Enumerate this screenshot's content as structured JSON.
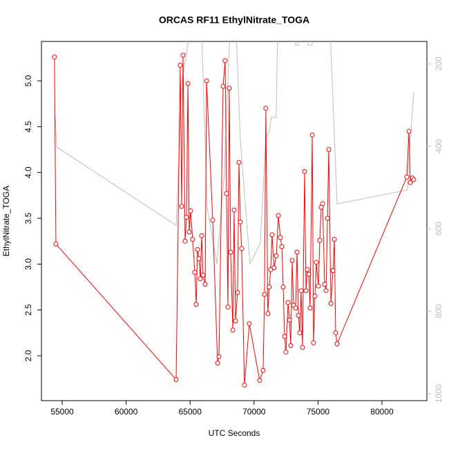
{
  "chart_data": {
    "type": "line",
    "title": "ORCAS RF11 EthylNitrate_TOGA",
    "xlabel": "UTC Seconds",
    "ylabel": "EthylNitrate_TOGA",
    "xlim": [
      53380,
      83510
    ],
    "ylim": [
      1.51,
      5.43
    ],
    "y2lim": [
      1017,
      146
    ],
    "xticks": [
      55000,
      60000,
      65000,
      70000,
      75000,
      80000
    ],
    "yticks": [
      {
        "value": 2,
        "label": "2.0"
      },
      {
        "value": 2.5,
        "label": "2.5"
      },
      {
        "value": 3,
        "label": "3.0"
      },
      {
        "value": 3.5,
        "label": "3.5"
      },
      {
        "value": 4,
        "label": "4.0"
      },
      {
        "value": 4.5,
        "label": "4.5"
      },
      {
        "value": 5,
        "label": "5.0"
      }
    ],
    "y2ticks": [
      200,
      400,
      600,
      800,
      1000
    ],
    "series": [
      {
        "axis": "y2",
        "color": "#bebebe",
        "markers": false,
        "x": [
          54460,
          54570,
          63910,
          64340,
          64990,
          65900,
          66330,
          67090,
          67680,
          68110,
          68600,
          68920,
          69680,
          70490,
          70920,
          71190,
          71350,
          71730,
          71840,
          73240,
          73250,
          73460,
          73470,
          74220,
          74230,
          74540,
          74600,
          75950,
          76490,
          82000,
          82050,
          82480
        ],
        "values": [
          330,
          402,
          592,
          247,
          120,
          120,
          548,
          685,
          464,
          120,
          120,
          381,
          685,
          635,
          381,
          364,
          330,
          330,
          120,
          120,
          155,
          155,
          120,
          120,
          155,
          155,
          120,
          120,
          540,
          506,
          464,
          269
        ]
      },
      {
        "axis": "y",
        "color": "#ff0000",
        "markers": true,
        "x": [
          54400,
          54510,
          63910,
          64230,
          64340,
          64450,
          64610,
          64720,
          64830,
          64930,
          65040,
          65200,
          65370,
          65480,
          65580,
          65690,
          65800,
          65910,
          66010,
          66180,
          66290,
          66770,
          67150,
          67260,
          67580,
          67740,
          67850,
          67960,
          68060,
          68170,
          68340,
          68440,
          68550,
          68710,
          68820,
          68930,
          69030,
          69250,
          69630,
          70440,
          70710,
          70820,
          70920,
          71080,
          71190,
          71300,
          71410,
          71570,
          71740,
          71900,
          72060,
          72170,
          72280,
          72390,
          72490,
          72660,
          72770,
          72870,
          72980,
          73090,
          73250,
          73360,
          73470,
          73570,
          73680,
          73790,
          73950,
          74060,
          74170,
          74280,
          74380,
          74550,
          74650,
          74760,
          74870,
          75030,
          75140,
          75250,
          75360,
          75520,
          75630,
          75740,
          75840,
          76010,
          76170,
          76280,
          76380,
          76490,
          81940,
          82110,
          82210,
          82380,
          82480
        ],
        "values": [
          5.26,
          3.22,
          1.74,
          5.17,
          3.63,
          5.28,
          3.25,
          3.51,
          4.97,
          3.35,
          3.58,
          3.27,
          2.91,
          2.56,
          3.16,
          3.06,
          2.84,
          3.31,
          2.88,
          2.78,
          5.0,
          3.48,
          1.92,
          1.99,
          4.94,
          5.22,
          3.77,
          2.53,
          4.92,
          3.13,
          2.28,
          3.59,
          2.38,
          2.69,
          4.11,
          3.46,
          3.17,
          1.68,
          2.35,
          1.73,
          1.84,
          2.67,
          4.7,
          2.46,
          2.75,
          2.94,
          3.32,
          2.96,
          3.09,
          3.53,
          3.29,
          3.19,
          2.75,
          2.21,
          2.04,
          2.58,
          2.39,
          2.11,
          3.04,
          2.55,
          2.52,
          3.13,
          2.44,
          2.25,
          2.71,
          2.09,
          4.01,
          2.71,
          2.94,
          2.89,
          2.52,
          4.41,
          2.14,
          2.65,
          3.02,
          2.76,
          3.26,
          3.62,
          3.66,
          2.78,
          2.71,
          3.5,
          4.25,
          2.57,
          2.93,
          3.27,
          2.25,
          2.13,
          3.95,
          4.45,
          3.89,
          3.94,
          3.92
        ]
      }
    ]
  }
}
